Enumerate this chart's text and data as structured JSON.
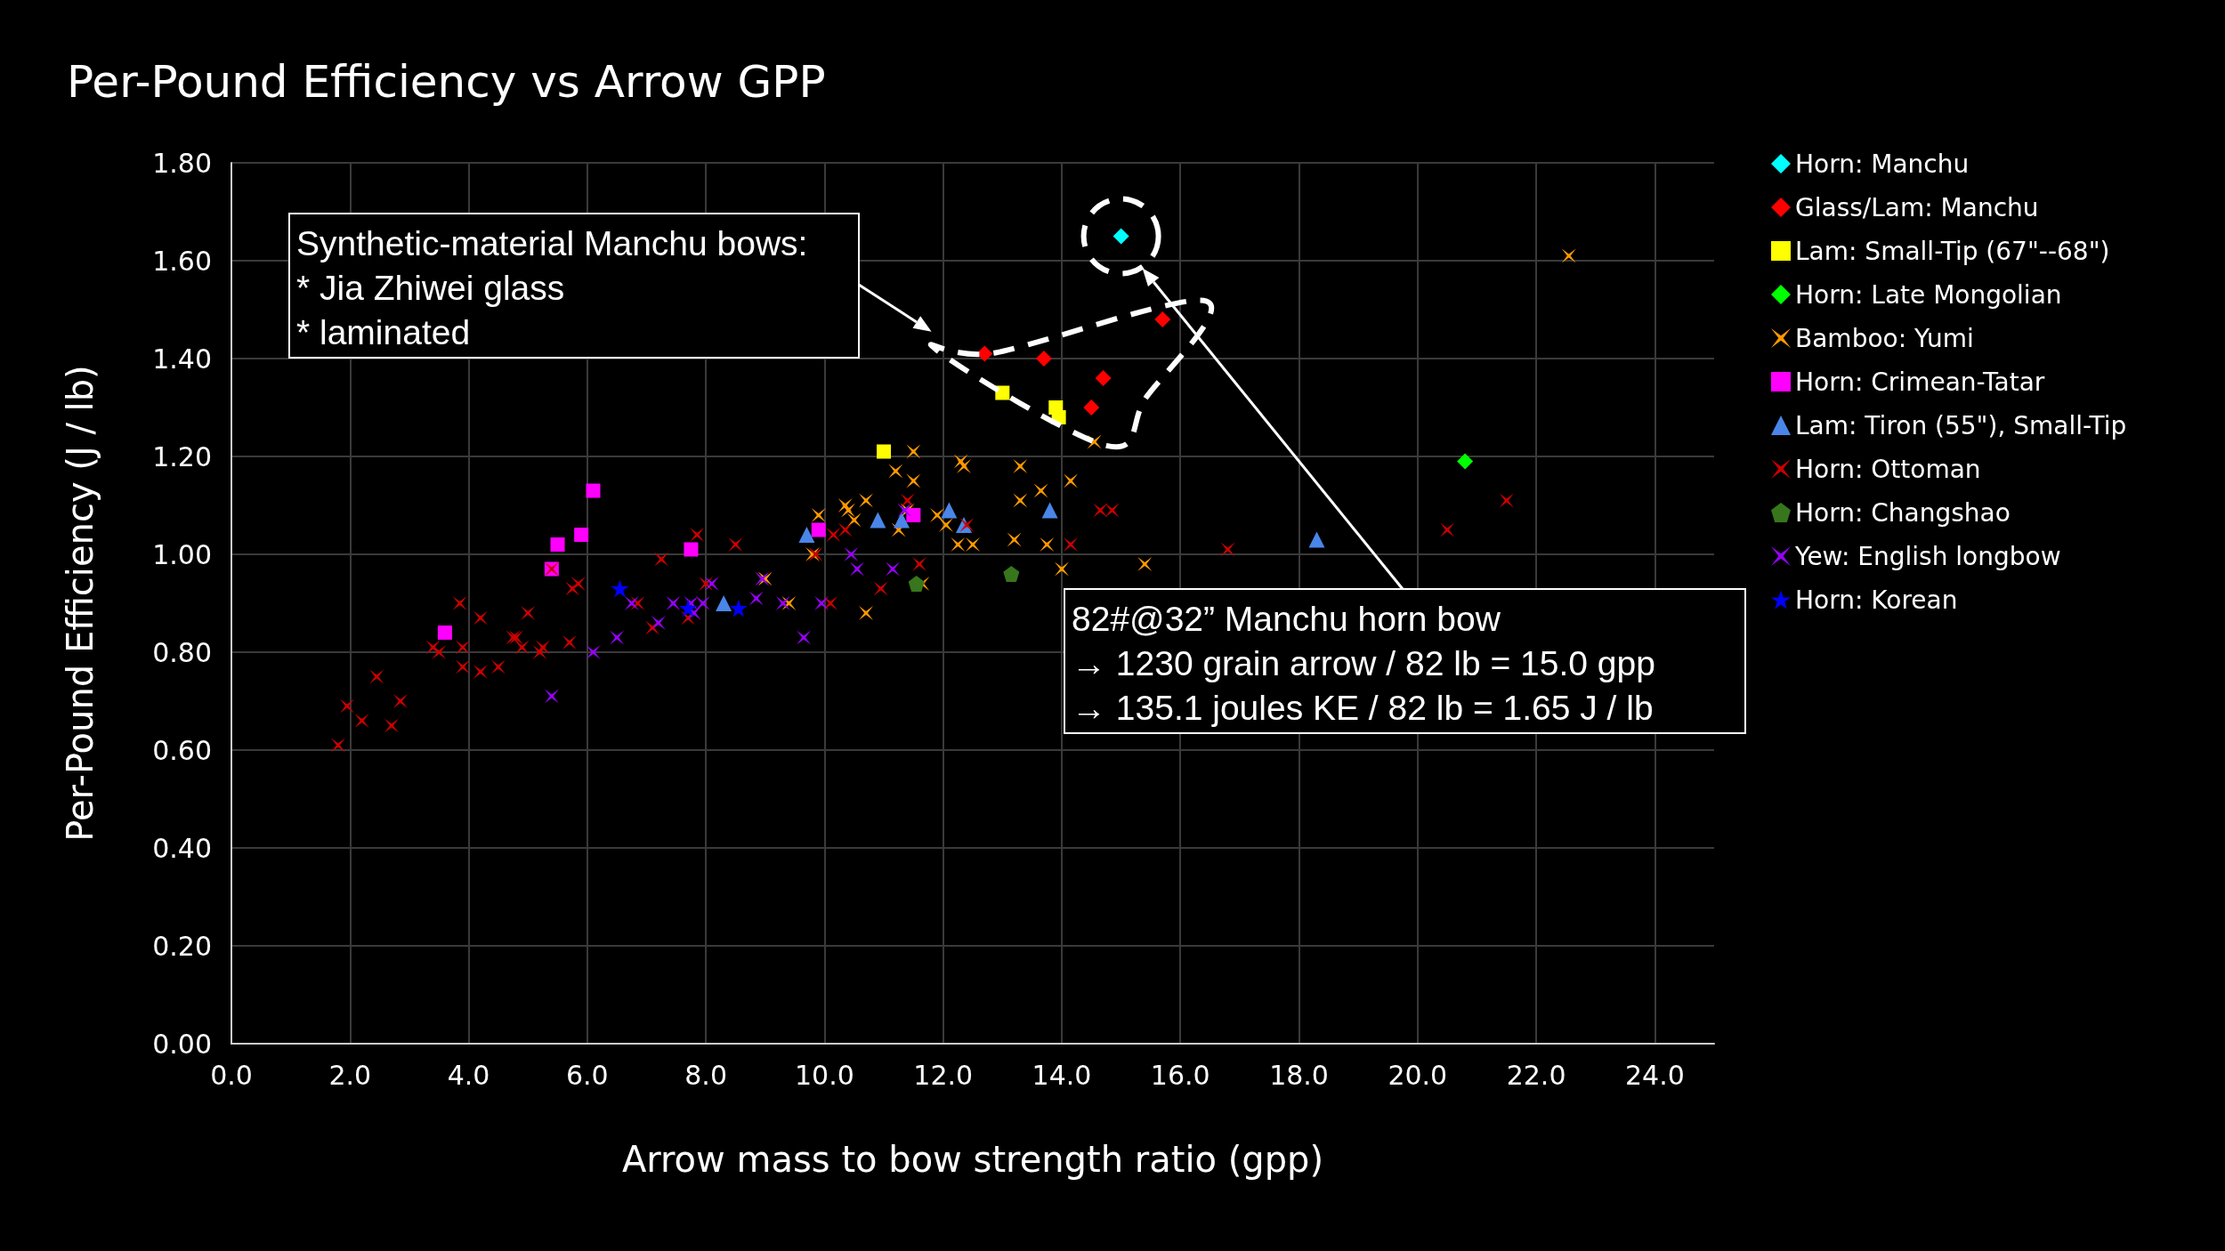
{
  "chart_data": {
    "type": "scatter",
    "title": "Per-Pound Efficiency vs Arrow GPP",
    "xlabel": "Arrow mass to bow strength ratio (gpp)",
    "ylabel": "Per-Pound Efficiency (J / lb)",
    "xlim": [
      0,
      25
    ],
    "xticks": [
      {
        "value": 0,
        "label": "0.0"
      },
      {
        "value": 2,
        "label": "2.0"
      },
      {
        "value": 4,
        "label": "4.0"
      },
      {
        "value": 6,
        "label": "6.0"
      },
      {
        "value": 8,
        "label": "8.0"
      },
      {
        "value": 10,
        "label": "10.0"
      },
      {
        "value": 12,
        "label": "12.0"
      },
      {
        "value": 14,
        "label": "14.0"
      },
      {
        "value": 16,
        "label": "16.0"
      },
      {
        "value": 18,
        "label": "18.0"
      },
      {
        "value": 20,
        "label": "20.0"
      },
      {
        "value": 22,
        "label": "22.0"
      },
      {
        "value": 24,
        "label": "24.0"
      }
    ],
    "ylim": [
      0,
      1.8
    ],
    "yticks": [
      {
        "value": 0,
        "label": "0.00"
      },
      {
        "value": 0.2,
        "label": "0.20"
      },
      {
        "value": 0.4,
        "label": "0.40"
      },
      {
        "value": 0.6,
        "label": "0.60"
      },
      {
        "value": 0.8,
        "label": "0.80"
      },
      {
        "value": 1.0,
        "label": "1.00"
      },
      {
        "value": 1.2,
        "label": "1.20"
      },
      {
        "value": 1.4,
        "label": "1.40"
      },
      {
        "value": 1.6,
        "label": "1.60"
      },
      {
        "value": 1.8,
        "label": "1.80"
      }
    ],
    "grid": true,
    "legend": "top right",
    "annotations": [
      "Synthetic-material Manchu bows:\n* Jia Zhiwei glass\n* laminated",
      "82#@32” Manchu horn bow\n→ 1230 grain arrow / 82 lb = 15.0 gpp\n→ 135.1 joules KE / 82 lb = 1.65 J / lb"
    ],
    "series": [
      {
        "name": "Horn: Manchu",
        "color": "#00ffff",
        "marker": "diamond",
        "x": [
          15.0
        ],
        "values": [
          1.65
        ]
      },
      {
        "name": "Glass/Lam: Manchu",
        "color": "#ff0000",
        "marker": "diamond",
        "x": [
          12.7,
          13.7,
          14.5,
          14.7,
          15.7
        ],
        "values": [
          1.41,
          1.4,
          1.3,
          1.36,
          1.48
        ]
      },
      {
        "name": "Lam: Small-Tip (67\"--68\")",
        "color": "#ffff00",
        "marker": "square",
        "x": [
          11.0,
          13.0,
          13.9,
          13.95
        ],
        "values": [
          1.21,
          1.33,
          1.3,
          1.28
        ]
      },
      {
        "name": "Horn: Late Mongolian",
        "color": "#00ff00",
        "marker": "diamond",
        "x": [
          20.8
        ],
        "values": [
          1.19
        ]
      },
      {
        "name": "Bamboo: Yumi",
        "color": "#ff9900",
        "marker": "cross",
        "x": [
          15.4,
          14.55,
          14.0,
          14.15,
          13.75,
          13.65,
          13.3,
          13.3,
          13.2,
          12.5,
          12.35,
          12.3,
          12.25,
          12.05,
          11.9,
          11.65,
          11.5,
          11.5,
          11.4,
          11.2,
          11.25,
          10.7,
          10.7,
          10.5,
          10.4,
          10.35,
          9.9,
          9.8,
          9.4,
          9.0,
          22.55
        ],
        "values": [
          0.98,
          1.23,
          0.97,
          1.15,
          1.02,
          1.13,
          1.11,
          1.18,
          1.03,
          1.02,
          1.18,
          1.19,
          1.02,
          1.06,
          1.08,
          0.94,
          1.15,
          1.21,
          1.09,
          1.17,
          1.05,
          1.11,
          0.88,
          1.07,
          1.09,
          1.1,
          1.08,
          1.0,
          0.9,
          0.95,
          1.61
        ]
      },
      {
        "name": "Horn: Crimean-Tatar",
        "color": "#ff00ff",
        "marker": "square",
        "x": [
          3.6,
          5.4,
          5.5,
          5.9,
          6.1,
          7.75,
          9.9,
          11.5
        ],
        "values": [
          0.84,
          0.97,
          1.02,
          1.04,
          1.13,
          1.01,
          1.05,
          1.08
        ]
      },
      {
        "name": "Lam: Tiron (55\"), Small-Tip",
        "color": "#4a86e8",
        "marker": "triangle",
        "x": [
          9.7,
          8.3,
          10.9,
          11.3,
          12.1,
          12.35,
          13.8,
          18.3
        ],
        "values": [
          1.04,
          0.9,
          1.07,
          1.07,
          1.09,
          1.06,
          1.09,
          1.03
        ]
      },
      {
        "name": "Horn: Ottoman",
        "color": "#cc0000",
        "marker": "cross",
        "x": [
          1.8,
          1.95,
          2.2,
          2.45,
          2.7,
          2.85,
          3.4,
          3.5,
          3.85,
          3.9,
          3.9,
          4.2,
          4.2,
          4.5,
          4.75,
          4.8,
          4.9,
          5.0,
          5.2,
          5.25,
          5.4,
          5.7,
          5.75,
          5.85,
          6.85,
          7.1,
          7.25,
          7.7,
          7.85,
          8.0,
          8.5,
          9.85,
          10.1,
          10.15,
          10.35,
          10.95,
          11.4,
          11.6,
          12.4,
          14.15,
          14.65,
          14.85,
          16.8,
          20.5,
          21.5
        ],
        "values": [
          0.61,
          0.69,
          0.66,
          0.75,
          0.65,
          0.7,
          0.81,
          0.8,
          0.9,
          0.81,
          0.77,
          0.87,
          0.76,
          0.77,
          0.83,
          0.83,
          0.81,
          0.88,
          0.8,
          0.81,
          0.97,
          0.82,
          0.93,
          0.94,
          0.9,
          0.85,
          0.99,
          0.87,
          1.04,
          0.94,
          1.02,
          1.0,
          0.9,
          1.04,
          1.05,
          0.93,
          1.11,
          0.98,
          1.06,
          1.02,
          1.09,
          1.09,
          1.01,
          1.05,
          1.11
        ]
      },
      {
        "name": "Horn: Changshao",
        "color": "#38761d",
        "x": [
          11.55,
          13.15
        ],
        "values": [
          0.94,
          0.96
        ]
      },
      {
        "name": "Yew: English longbow",
        "color": "#9900ff",
        "marker": "cross",
        "x": [
          5.4,
          6.1,
          6.5,
          6.75,
          7.2,
          7.45,
          7.75,
          7.8,
          7.95,
          8.1,
          8.85,
          8.95,
          9.3,
          9.65,
          9.95,
          10.45,
          10.55,
          11.15,
          11.35
        ],
        "values": [
          0.71,
          0.8,
          0.83,
          0.9,
          0.86,
          0.9,
          0.9,
          0.88,
          0.9,
          0.94,
          0.91,
          0.95,
          0.9,
          0.83,
          0.9,
          1.0,
          0.97,
          0.97,
          1.09
        ]
      },
      {
        "name": "Horn: Korean",
        "color": "#0000ff",
        "marker": "star",
        "x": [
          6.55,
          7.7,
          8.55
        ],
        "values": [
          0.93,
          0.89,
          0.89
        ]
      }
    ]
  }
}
